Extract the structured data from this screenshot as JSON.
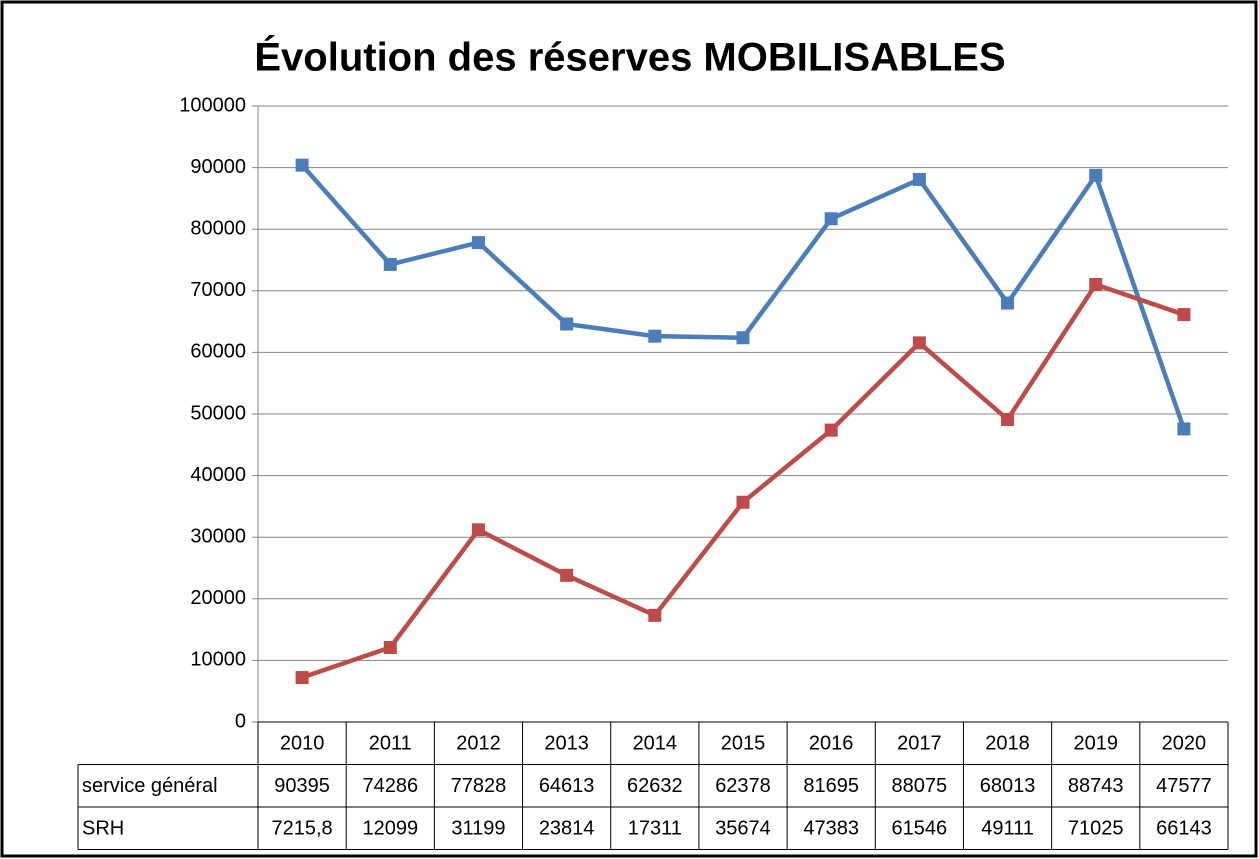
{
  "chart_data": {
    "type": "line",
    "title": "Évolution des réserves MOBILISABLES",
    "categories": [
      "2010",
      "2011",
      "2012",
      "2013",
      "2014",
      "2015",
      "2016",
      "2017",
      "2018",
      "2019",
      "2020"
    ],
    "series": [
      {
        "name": "service général",
        "color": "#4a7ebb",
        "values": [
          90395,
          74286,
          77828,
          64613,
          62632,
          62378,
          81695,
          88075,
          68013,
          88743,
          47577
        ]
      },
      {
        "name": "SRH",
        "color": "#be4b48",
        "values": [
          7215.8,
          12099,
          31199,
          23814,
          17311,
          35674,
          47383,
          61546,
          49111,
          71025,
          66143
        ],
        "value_labels": [
          "7215,8",
          "12099",
          "31199",
          "23814",
          "17311",
          "35674",
          "47383",
          "61546",
          "49111",
          "71025",
          "66143"
        ]
      }
    ],
    "ylim": [
      0,
      100000
    ],
    "yticks": [
      0,
      10000,
      20000,
      30000,
      40000,
      50000,
      60000,
      70000,
      80000,
      90000,
      100000
    ],
    "grid": true
  }
}
